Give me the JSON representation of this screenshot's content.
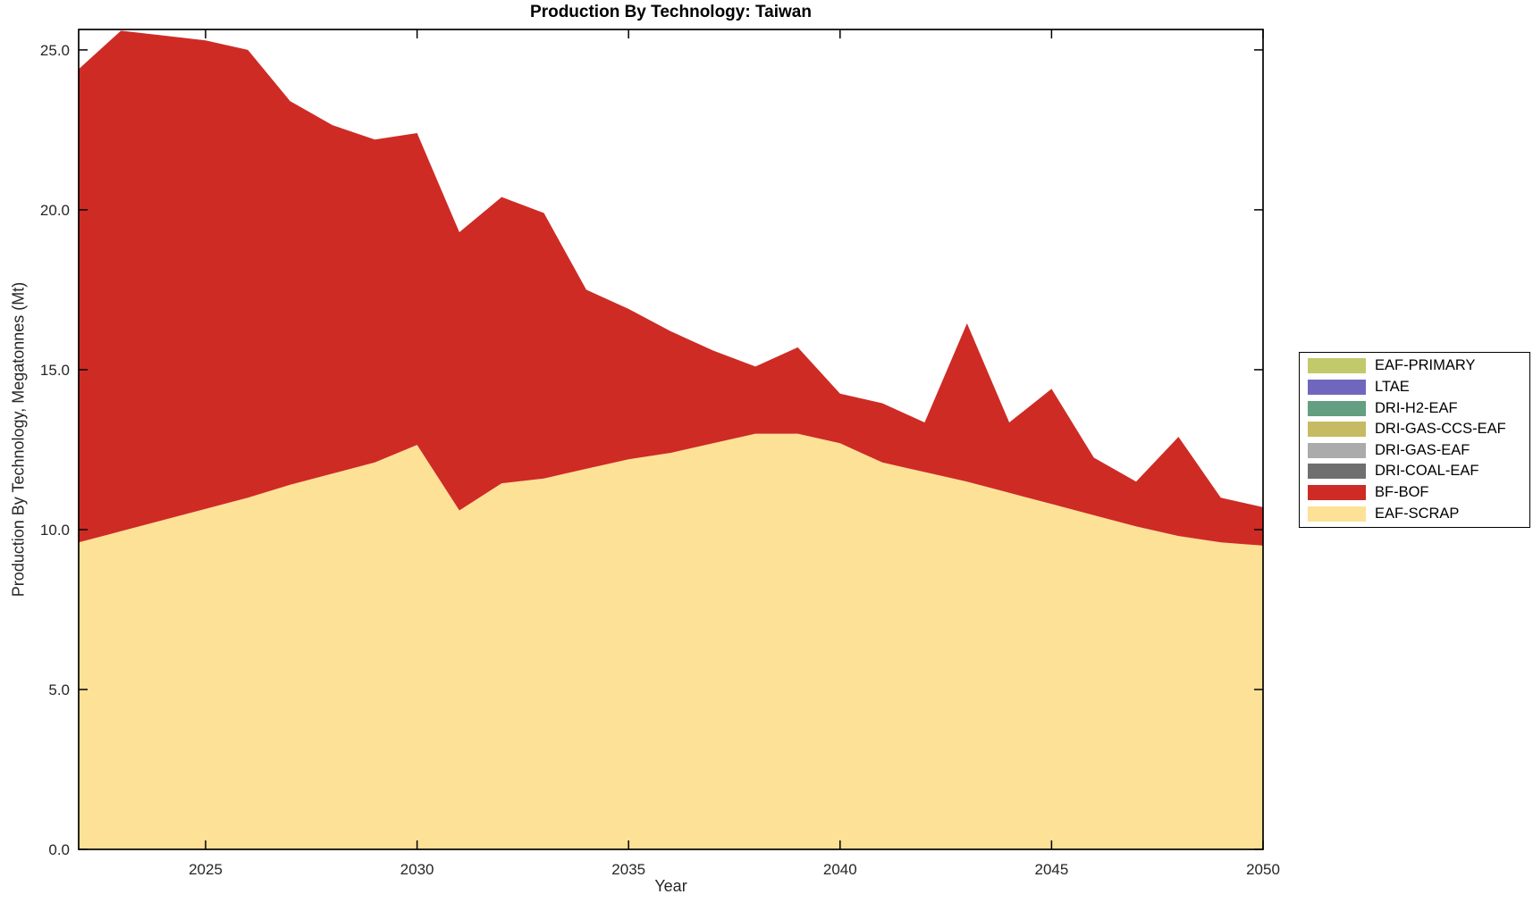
{
  "title": "Production By Technology: Taiwan",
  "chart_data": {
    "type": "area",
    "stacked": true,
    "title": "Production By Technology: Taiwan",
    "xlabel": "Year",
    "ylabel": "Production By Technology, Megatonnes (Mt)",
    "xlim": [
      2022,
      2050
    ],
    "ylim": [
      0,
      25.64
    ],
    "grid": false,
    "legend_position": "right-outside",
    "x": [
      2022,
      2023,
      2024,
      2025,
      2026,
      2027,
      2028,
      2029,
      2030,
      2031,
      2032,
      2033,
      2034,
      2035,
      2036,
      2037,
      2038,
      2039,
      2040,
      2041,
      2042,
      2043,
      2044,
      2045,
      2046,
      2047,
      2048,
      2049,
      2050
    ],
    "series": [
      {
        "name": "EAF-SCRAP",
        "color": "#fde196",
        "values": [
          9.6,
          9.95,
          10.3,
          10.65,
          11.0,
          11.4,
          11.75,
          12.1,
          12.65,
          10.6,
          11.45,
          11.6,
          11.9,
          12.2,
          12.4,
          12.7,
          13.0,
          13.0,
          12.7,
          12.1,
          11.8,
          11.5,
          11.15,
          10.8,
          10.45,
          10.1,
          9.8,
          9.6,
          9.5
        ]
      },
      {
        "name": "BF-BOF",
        "color": "#ce2b25",
        "values": [
          14.8,
          15.65,
          15.15,
          14.65,
          14.0,
          12.0,
          10.9,
          10.1,
          9.75,
          8.7,
          8.95,
          8.3,
          5.6,
          4.7,
          3.8,
          2.9,
          2.1,
          2.7,
          1.55,
          1.85,
          1.55,
          4.95,
          2.2,
          3.6,
          1.8,
          1.4,
          3.1,
          1.4,
          1.2
        ]
      },
      {
        "name": "DRI-COAL-EAF",
        "color": "#6f6f6f",
        "values": [
          0,
          0,
          0,
          0,
          0,
          0,
          0,
          0,
          0,
          0,
          0,
          0,
          0,
          0,
          0,
          0,
          0,
          0,
          0,
          0,
          0,
          0,
          0,
          0,
          0,
          0,
          0,
          0,
          0
        ]
      },
      {
        "name": "DRI-GAS-EAF",
        "color": "#ababab",
        "values": [
          0,
          0,
          0,
          0,
          0,
          0,
          0,
          0,
          0,
          0,
          0,
          0,
          0,
          0,
          0,
          0,
          0,
          0,
          0,
          0,
          0,
          0,
          0,
          0,
          0,
          0,
          0,
          0,
          0
        ]
      },
      {
        "name": "DRI-GAS-CCS-EAF",
        "color": "#c6bb62",
        "values": [
          0,
          0,
          0,
          0,
          0,
          0,
          0,
          0,
          0,
          0,
          0,
          0,
          0,
          0,
          0,
          0,
          0,
          0,
          0,
          0,
          0,
          0,
          0,
          0,
          0,
          0,
          0,
          0,
          0
        ]
      },
      {
        "name": "DRI-H2-EAF",
        "color": "#639f80",
        "values": [
          0,
          0,
          0,
          0,
          0,
          0,
          0,
          0,
          0,
          0,
          0,
          0,
          0,
          0,
          0,
          0,
          0,
          0,
          0,
          0,
          0,
          0,
          0,
          0,
          0,
          0,
          0,
          0,
          0
        ]
      },
      {
        "name": "LTAE",
        "color": "#7166be",
        "values": [
          0,
          0,
          0,
          0,
          0,
          0,
          0,
          0,
          0,
          0,
          0,
          0,
          0,
          0,
          0,
          0,
          0,
          0,
          0,
          0,
          0,
          0,
          0,
          0,
          0,
          0,
          0,
          0,
          0
        ]
      },
      {
        "name": "EAF-PRIMARY",
        "color": "#c2c96a",
        "values": [
          0,
          0,
          0,
          0,
          0,
          0,
          0,
          0,
          0,
          0,
          0,
          0,
          0,
          0,
          0,
          0,
          0,
          0,
          0,
          0,
          0,
          0,
          0,
          0,
          0,
          0,
          0,
          0,
          0
        ]
      }
    ],
    "legend": [
      {
        "label": "EAF-PRIMARY",
        "color": "#c2c96a"
      },
      {
        "label": "LTAE",
        "color": "#7166be"
      },
      {
        "label": "DRI-H2-EAF",
        "color": "#639f80"
      },
      {
        "label": "DRI-GAS-CCS-EAF",
        "color": "#c6bb62"
      },
      {
        "label": "DRI-GAS-EAF",
        "color": "#ababab"
      },
      {
        "label": "DRI-COAL-EAF",
        "color": "#6f6f6f"
      },
      {
        "label": "BF-BOF",
        "color": "#ce2b25"
      },
      {
        "label": "EAF-SCRAP",
        "color": "#fde196"
      }
    ],
    "xticks": [
      2025,
      2030,
      2035,
      2040,
      2045,
      2050
    ],
    "xtick_labels": [
      "2025",
      "2030",
      "2035",
      "2040",
      "2045",
      "2050"
    ],
    "yticks": [
      0,
      5,
      10,
      15,
      20,
      25
    ],
    "ytick_labels": [
      "0.0",
      "5.0",
      "10.0",
      "15.0",
      "20.0",
      "25.0"
    ]
  }
}
